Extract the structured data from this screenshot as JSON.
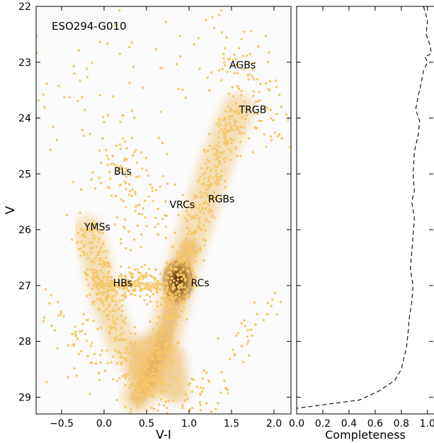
{
  "chart_data": [
    {
      "type": "scatter",
      "title": "ESO294-G010",
      "xlabel": "V-I",
      "ylabel": "V",
      "xlim": [
        -0.8,
        2.2
      ],
      "ylim": [
        29.3,
        22.0
      ],
      "y_inverted": true,
      "xticks": [
        -0.5,
        0.0,
        0.5,
        1.0,
        1.5,
        2.0
      ],
      "xtick_labels": [
        "−0.5",
        "0.0",
        "0.5",
        "1.0",
        "1.5",
        "2.0"
      ],
      "yticks": [
        22,
        23,
        24,
        25,
        26,
        27,
        28,
        29
      ],
      "ytick_labels": [
        "22",
        "23",
        "24",
        "25",
        "26",
        "27",
        "28",
        "29"
      ],
      "grid": false,
      "colors": {
        "points": "#f6c868",
        "density_light": "#f0c880",
        "density_dark": "#5a3d10",
        "background": "#fafafa"
      },
      "annotations": [
        {
          "text": "AGBs",
          "x": 1.63,
          "y": 23.05
        },
        {
          "text": "TRGB",
          "x": 1.75,
          "y": 23.85
        },
        {
          "text": "BLs",
          "x": 0.22,
          "y": 24.95
        },
        {
          "text": "RGBs",
          "x": 1.38,
          "y": 25.45
        },
        {
          "text": "VRCs",
          "x": 0.92,
          "y": 25.55
        },
        {
          "text": "YMSs",
          "x": -0.08,
          "y": 25.95
        },
        {
          "text": "HBs",
          "x": 0.22,
          "y": 26.95
        },
        {
          "text": "RCs",
          "x": 1.13,
          "y": 26.95
        }
      ],
      "series": [
        {
          "kind": "red-giant-branch",
          "points": [
            [
              1.58,
              23.85
            ],
            [
              1.45,
              24.3
            ],
            [
              1.3,
              24.9
            ],
            [
              1.15,
              25.6
            ],
            [
              1.0,
              26.3
            ],
            [
              0.9,
              26.8
            ],
            [
              0.82,
              27.3
            ],
            [
              0.7,
              28.0
            ],
            [
              0.55,
              28.6
            ],
            [
              0.4,
              29.0
            ]
          ]
        },
        {
          "kind": "red-clump-core",
          "points": [
            [
              0.88,
              26.85
            ],
            [
              0.85,
              27.0
            ]
          ]
        },
        {
          "kind": "horizontal-branch",
          "points": [
            [
              0.0,
              27.0
            ],
            [
              0.2,
              27.0
            ],
            [
              0.4,
              26.95
            ],
            [
              0.6,
              26.95
            ]
          ]
        },
        {
          "kind": "main-sequence",
          "points": [
            [
              -0.2,
              26.0
            ],
            [
              -0.1,
              26.5
            ],
            [
              0.0,
              27.2
            ],
            [
              0.2,
              28.0
            ],
            [
              0.5,
              28.7
            ]
          ]
        }
      ]
    },
    {
      "type": "line",
      "xlabel": "Completeness",
      "xlim": [
        0.0,
        1.05
      ],
      "xticks": [
        0.0,
        0.2,
        0.4,
        0.6,
        0.8,
        1.0
      ],
      "xtick_labels": [
        "0.0",
        "0.2",
        "0.4",
        "0.6",
        "0.8",
        "1.0"
      ],
      "line_style": "dashed",
      "series": [
        {
          "x": [
            0.97,
            1.0,
            0.99,
            1.02,
            1.03,
            0.98,
            1.0,
            0.97,
            0.95,
            0.93,
            0.91,
            0.94,
            0.93,
            0.9,
            0.89,
            0.9,
            0.88,
            0.9,
            0.89,
            0.88,
            0.87,
            0.89,
            0.88,
            0.86,
            0.85,
            0.84,
            0.82,
            0.8,
            0.75,
            0.62,
            0.48,
            0.0
          ],
          "y": [
            22.0,
            22.25,
            22.5,
            22.7,
            22.85,
            22.9,
            23.0,
            23.15,
            23.4,
            23.6,
            23.85,
            24.05,
            24.3,
            24.6,
            25.0,
            25.3,
            25.5,
            25.8,
            26.1,
            26.4,
            26.7,
            27.0,
            27.3,
            27.6,
            27.9,
            28.1,
            28.3,
            28.5,
            28.7,
            28.9,
            29.05,
            29.2
          ]
        }
      ]
    }
  ]
}
